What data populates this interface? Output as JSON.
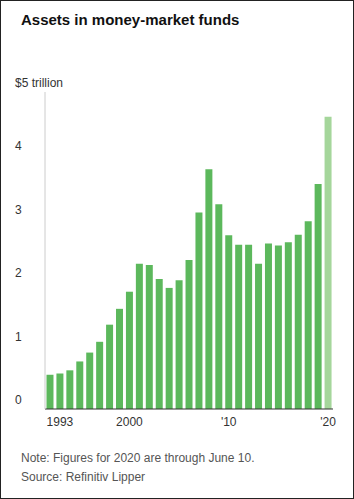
{
  "chart_data": {
    "type": "bar",
    "title": "Assets in money-market funds",
    "categories": [
      null,
      "1993",
      null,
      null,
      null,
      null,
      null,
      null,
      "2000",
      null,
      null,
      null,
      null,
      null,
      null,
      null,
      null,
      null,
      "'10",
      null,
      null,
      null,
      null,
      null,
      null,
      null,
      null,
      null,
      "'20"
    ],
    "values": [
      0.54,
      0.56,
      0.61,
      0.75,
      0.89,
      1.06,
      1.33,
      1.58,
      1.85,
      2.29,
      2.27,
      2.05,
      1.91,
      2.03,
      2.35,
      3.1,
      3.78,
      3.23,
      2.74,
      2.59,
      2.59,
      2.29,
      2.61,
      2.58,
      2.63,
      2.75,
      2.96,
      3.55,
      4.61
    ],
    "colors": [
      "#5cb85c",
      "#5cb85c",
      "#5cb85c",
      "#5cb85c",
      "#5cb85c",
      "#5cb85c",
      "#5cb85c",
      "#5cb85c",
      "#5cb85c",
      "#5cb85c",
      "#5cb85c",
      "#5cb85c",
      "#5cb85c",
      "#5cb85c",
      "#5cb85c",
      "#5cb85c",
      "#5cb85c",
      "#5cb85c",
      "#5cb85c",
      "#5cb85c",
      "#5cb85c",
      "#5cb85c",
      "#5cb85c",
      "#5cb85c",
      "#5cb85c",
      "#5cb85c",
      "#5cb85c",
      "#5cb85c",
      "#a5d69b"
    ],
    "ylim": [
      0,
      5
    ],
    "yticks": [
      0,
      1,
      2,
      3,
      4,
      {
        "value": 5,
        "label": "$5 trillion"
      }
    ],
    "grid": false,
    "annotations": [
      "Note: Figures for 2020 are through June 10.",
      "Source: Refinitiv Lipper"
    ]
  }
}
